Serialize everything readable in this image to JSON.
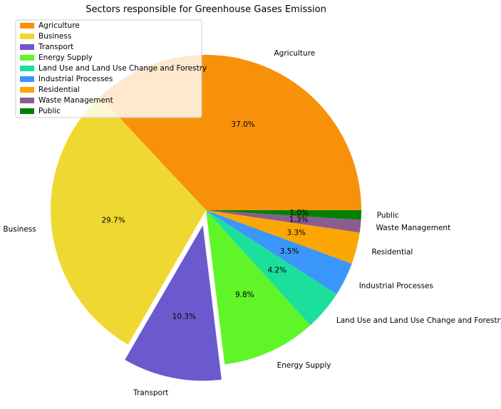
{
  "chart_data": {
    "type": "pie",
    "title": "Sectors responsible for Greenhouse Gases Emission",
    "legend_position": "upper-left",
    "start_angle_deg": 0,
    "direction": "counterclockwise",
    "slices": [
      {
        "label": "Agriculture",
        "value": 37.0,
        "pct_text": "37.0%",
        "color": "#F8910A",
        "exploded": false
      },
      {
        "label": "Business",
        "value": 29.7,
        "pct_text": "29.7%",
        "color": "#F0D832",
        "exploded": false
      },
      {
        "label": "Transport",
        "value": 10.3,
        "pct_text": "10.3%",
        "color": "#6A5ACD",
        "exploded": true
      },
      {
        "label": "Energy Supply",
        "value": 9.8,
        "pct_text": "9.8%",
        "color": "#5FF529",
        "exploded": false
      },
      {
        "label": "Land Use and Land Use Change and Forestry",
        "value": 4.2,
        "pct_text": "4.2%",
        "color": "#1CDF9C",
        "exploded": false
      },
      {
        "label": "Industrial Processes",
        "value": 3.5,
        "pct_text": "3.5%",
        "color": "#3A96FA",
        "exploded": false
      },
      {
        "label": "Residential",
        "value": 3.3,
        "pct_text": "3.3%",
        "color": "#FCA604",
        "exploded": false
      },
      {
        "label": "Waste Management",
        "value": 1.3,
        "pct_text": "1.3%",
        "color": "#8B5D8F",
        "exploded": false
      },
      {
        "label": "Public",
        "value": 1.0,
        "pct_text": "1.0%",
        "color": "#008000",
        "exploded": false
      }
    ]
  }
}
